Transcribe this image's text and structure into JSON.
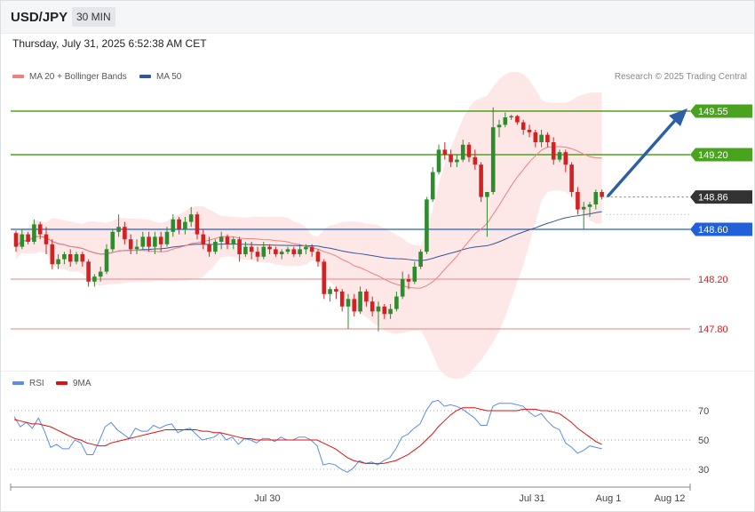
{
  "header": {
    "symbol": "USD/JPY",
    "timeframe": "30 MIN",
    "datetime": "Thursday, July 31, 2025 6:52:38 AM CET"
  },
  "legend": {
    "ma20_label": "MA 20 + Bollinger Bands",
    "ma20_color": "#f08080",
    "ma50_label": "MA 50",
    "ma50_color": "#34579a",
    "credit": "Research © 2025 Trading Central"
  },
  "rsi_legend": {
    "rsi_label": "RSI",
    "rsi_color": "#5b8ce8",
    "ma_label": "9MA",
    "ma_color": "#e01010"
  },
  "colors": {
    "up_candle": "#2e8b2e",
    "down_candle": "#d42020",
    "resistance": "#4aa31f",
    "support": "#e08888",
    "pivot": "#2160d8",
    "current": "#333333",
    "band_fill": "#fde3e3",
    "arrow": "#2d5ea8"
  },
  "chart_data": {
    "type": "candlestick",
    "price_scale": {
      "min": 147.6,
      "max": 149.8
    },
    "levels": [
      {
        "value": 149.55,
        "label": "149.55",
        "kind": "resistance"
      },
      {
        "value": 149.2,
        "label": "149.20",
        "kind": "resistance"
      },
      {
        "value": 148.86,
        "label": "148.86",
        "kind": "current"
      },
      {
        "value": 148.6,
        "label": "148.60",
        "kind": "pivot"
      },
      {
        "value": 148.2,
        "label": "148.20",
        "kind": "support"
      },
      {
        "value": 147.8,
        "label": "147.80",
        "kind": "support"
      }
    ],
    "ohlc": [
      [
        148.57,
        148.59,
        148.42,
        148.46
      ],
      [
        148.46,
        148.6,
        148.44,
        148.56
      ],
      [
        148.56,
        148.58,
        148.48,
        148.5
      ],
      [
        148.5,
        148.68,
        148.48,
        148.64
      ],
      [
        148.64,
        148.66,
        148.52,
        148.56
      ],
      [
        148.56,
        148.62,
        148.4,
        148.48
      ],
      [
        148.48,
        148.52,
        148.28,
        148.32
      ],
      [
        148.32,
        148.4,
        148.28,
        148.36
      ],
      [
        148.36,
        148.42,
        148.32,
        148.4
      ],
      [
        148.4,
        148.44,
        148.3,
        148.34
      ],
      [
        148.34,
        148.42,
        148.32,
        148.4
      ],
      [
        148.4,
        148.42,
        148.3,
        148.34
      ],
      [
        148.34,
        148.36,
        148.14,
        148.18
      ],
      [
        148.18,
        148.24,
        148.14,
        148.22
      ],
      [
        148.22,
        148.3,
        148.18,
        148.26
      ],
      [
        148.26,
        148.48,
        148.24,
        148.44
      ],
      [
        148.44,
        148.6,
        148.42,
        148.58
      ],
      [
        148.58,
        148.72,
        148.54,
        148.62
      ],
      [
        148.62,
        148.66,
        148.48,
        148.52
      ],
      [
        148.52,
        148.56,
        148.4,
        148.44
      ],
      [
        148.44,
        148.52,
        148.4,
        148.46
      ],
      [
        148.46,
        148.58,
        148.44,
        148.54
      ],
      [
        148.54,
        148.58,
        148.42,
        148.46
      ],
      [
        148.46,
        148.58,
        148.4,
        148.54
      ],
      [
        148.54,
        148.58,
        148.42,
        148.48
      ],
      [
        148.48,
        148.62,
        148.46,
        148.58
      ],
      [
        148.58,
        148.72,
        148.54,
        148.68
      ],
      [
        148.68,
        148.7,
        148.56,
        148.6
      ],
      [
        148.6,
        148.7,
        148.56,
        148.66
      ],
      [
        148.66,
        148.78,
        148.62,
        148.72
      ],
      [
        148.72,
        148.74,
        148.52,
        148.56
      ],
      [
        148.56,
        148.6,
        148.44,
        148.48
      ],
      [
        148.48,
        148.54,
        148.38,
        148.42
      ],
      [
        148.42,
        148.52,
        148.4,
        148.5
      ],
      [
        148.5,
        148.58,
        148.44,
        148.54
      ],
      [
        148.54,
        148.56,
        148.44,
        148.48
      ],
      [
        148.48,
        148.54,
        148.44,
        148.52
      ],
      [
        148.52,
        148.54,
        148.34,
        148.4
      ],
      [
        148.4,
        148.5,
        148.38,
        148.46
      ],
      [
        148.46,
        148.5,
        148.36,
        148.42
      ],
      [
        148.42,
        148.46,
        148.34,
        148.38
      ],
      [
        148.38,
        148.5,
        148.36,
        148.46
      ],
      [
        148.46,
        148.48,
        148.4,
        148.44
      ],
      [
        148.44,
        148.46,
        148.38,
        148.4
      ],
      [
        148.4,
        148.44,
        148.36,
        148.42
      ],
      [
        148.42,
        148.46,
        148.4,
        148.44
      ],
      [
        148.44,
        148.46,
        148.38,
        148.4
      ],
      [
        148.4,
        148.48,
        148.38,
        148.44
      ],
      [
        148.44,
        148.48,
        148.4,
        148.46
      ],
      [
        148.46,
        148.48,
        148.38,
        148.42
      ],
      [
        148.42,
        148.44,
        148.3,
        148.34
      ],
      [
        148.34,
        148.36,
        148.04,
        148.08
      ],
      [
        148.08,
        148.14,
        148.02,
        148.12
      ],
      [
        148.12,
        148.14,
        148.04,
        148.1
      ],
      [
        148.1,
        148.12,
        147.94,
        147.98
      ],
      [
        147.98,
        148.08,
        147.8,
        148.04
      ],
      [
        148.04,
        148.08,
        147.9,
        147.94
      ],
      [
        147.94,
        148.14,
        147.92,
        148.1
      ],
      [
        148.1,
        148.12,
        147.98,
        148.02
      ],
      [
        148.02,
        148.06,
        147.9,
        147.94
      ],
      [
        147.94,
        148.02,
        147.78,
        147.98
      ],
      [
        147.98,
        148.0,
        147.88,
        147.92
      ],
      [
        147.92,
        148.0,
        147.88,
        147.96
      ],
      [
        147.96,
        148.1,
        147.94,
        148.06
      ],
      [
        148.06,
        148.26,
        148.04,
        148.2
      ],
      [
        148.2,
        148.24,
        148.12,
        148.18
      ],
      [
        148.18,
        148.34,
        148.16,
        148.3
      ],
      [
        148.3,
        148.44,
        148.28,
        148.42
      ],
      [
        148.42,
        148.86,
        148.4,
        148.84
      ],
      [
        148.84,
        149.1,
        148.82,
        149.06
      ],
      [
        149.06,
        149.28,
        149.04,
        149.24
      ],
      [
        149.24,
        149.3,
        149.16,
        149.2
      ],
      [
        149.2,
        149.24,
        149.1,
        149.14
      ],
      [
        149.14,
        149.2,
        149.1,
        149.16
      ],
      [
        149.16,
        149.32,
        149.14,
        149.28
      ],
      [
        149.28,
        149.3,
        149.14,
        149.18
      ],
      [
        149.18,
        149.24,
        149.08,
        149.12
      ],
      [
        149.12,
        149.14,
        148.82,
        148.86
      ],
      [
        148.86,
        148.9,
        148.54,
        148.9
      ],
      [
        148.9,
        149.58,
        148.88,
        149.42
      ],
      [
        149.42,
        149.48,
        149.34,
        149.44
      ],
      [
        149.44,
        149.54,
        149.42,
        149.5
      ],
      [
        149.5,
        149.52,
        149.48,
        149.51
      ],
      [
        149.51,
        149.52,
        149.44,
        149.46
      ],
      [
        149.46,
        149.48,
        149.36,
        149.4
      ],
      [
        149.4,
        149.44,
        149.34,
        149.38
      ],
      [
        149.38,
        149.4,
        149.26,
        149.3
      ],
      [
        149.3,
        149.4,
        149.26,
        149.36
      ],
      [
        149.36,
        149.38,
        149.26,
        149.3
      ],
      [
        149.3,
        149.34,
        149.12,
        149.16
      ],
      [
        149.16,
        149.24,
        149.14,
        149.22
      ],
      [
        149.22,
        149.24,
        149.06,
        149.12
      ],
      [
        149.12,
        149.14,
        148.86,
        148.9
      ],
      [
        148.9,
        148.94,
        148.72,
        148.76
      ],
      [
        148.76,
        148.82,
        148.6,
        148.78
      ],
      [
        148.78,
        148.82,
        148.7,
        148.8
      ],
      [
        148.8,
        148.92,
        148.76,
        148.9
      ],
      [
        148.9,
        148.92,
        148.84,
        148.86
      ]
    ],
    "x_labels": [
      "Jul 30",
      "Jul 31",
      "Aug 1",
      "Aug 12"
    ],
    "rsi": {
      "levels": [
        70,
        50,
        30
      ],
      "scale": {
        "min": 20,
        "max": 80
      },
      "rsi_values": [
        66,
        59,
        62,
        58,
        65,
        56,
        45,
        47,
        44,
        44,
        50,
        48,
        40,
        40,
        49,
        59,
        62,
        57,
        54,
        51,
        58,
        56,
        56,
        60,
        58,
        60,
        61,
        55,
        57,
        58,
        54,
        50,
        51,
        52,
        55,
        50,
        52,
        47,
        51,
        50,
        48,
        51,
        51,
        49,
        52,
        50,
        50,
        52,
        52,
        50,
        46,
        33,
        34,
        33,
        30,
        28,
        31,
        36,
        34,
        35,
        33,
        36,
        38,
        44,
        52,
        54,
        58,
        61,
        70,
        76,
        77,
        73,
        74,
        73,
        71,
        68,
        65,
        60,
        60,
        73,
        75,
        75,
        75,
        74,
        73,
        69,
        66,
        68,
        63,
        59,
        57,
        48,
        45,
        41,
        43,
        46,
        45,
        44
      ],
      "ma_values": [
        64,
        63,
        62,
        61,
        61,
        60,
        59,
        57,
        55,
        53,
        51,
        50,
        48,
        47,
        46,
        46,
        48,
        49,
        50,
        51,
        52,
        53,
        54,
        55,
        56,
        57,
        57,
        57,
        57,
        57,
        57,
        56,
        56,
        55,
        55,
        54,
        53,
        52,
        51,
        51,
        50,
        50,
        50,
        50,
        50,
        50,
        50,
        50,
        50,
        50,
        50,
        48,
        46,
        44,
        41,
        38,
        36,
        35,
        34,
        34,
        34,
        34,
        35,
        36,
        38,
        40,
        43,
        46,
        50,
        54,
        59,
        63,
        67,
        70,
        72,
        72,
        72,
        71,
        70,
        70,
        70,
        70,
        70,
        70,
        71,
        71,
        71,
        70,
        70,
        69,
        68,
        65,
        62,
        58,
        55,
        52,
        49,
        47
      ]
    }
  }
}
